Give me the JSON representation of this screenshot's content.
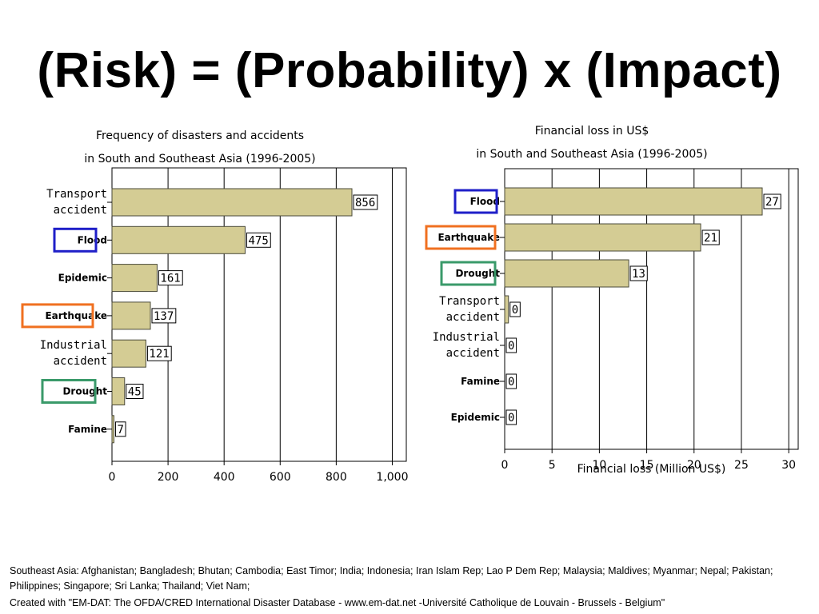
{
  "page": {
    "title": "(Risk) = (Probability) x (Impact)",
    "footnote_countries": "Southeast Asia: Afghanistan; Bangladesh; Bhutan; Cambodia; East Timor; India; Indonesia; Iran Islam Rep; Lao P Dem Rep; Malaysia; Maldives; Myanmar; Nepal; Pakistan; Philippines; Singapore; Sri Lanka; Thailand; Viet Nam;",
    "footnote_source": "Created with \"EM-DAT: The OFDA/CRED International Disaster Database - www.em-dat.net -Université Catholique de Louvain - Brussels - Belgium\""
  },
  "colors": {
    "bar_fill": "#d4cc94",
    "bar_stroke": "#4a4a3a",
    "highlight_flood": "#1f1fc8",
    "highlight_earthquake": "#f07020",
    "highlight_drought": "#3a9a6a"
  },
  "chart_data": [
    {
      "type": "bar",
      "orientation": "horizontal",
      "title_line1": "Frequency of disasters and accidents",
      "title_line2": "in South and Southeast Asia (1996-2005)",
      "xlabel": "",
      "categories": [
        "Transport accident",
        "Flood",
        "Epidemic",
        "Earthquake",
        "Industrial accident",
        "Drought",
        "Famine"
      ],
      "category_lines": [
        [
          "Transport",
          "accident"
        ],
        [
          "Flood"
        ],
        [
          "Epidemic"
        ],
        [
          "Earthquake"
        ],
        [
          "Industrial",
          "accident"
        ],
        [
          "Drought"
        ],
        [
          "Famine"
        ]
      ],
      "values": [
        856,
        475,
        161,
        137,
        121,
        45,
        7
      ],
      "value_labels": [
        "856",
        "475",
        "161",
        "137",
        "121",
        "45",
        "7"
      ],
      "xlim": [
        0,
        1050
      ],
      "ticks": [
        0,
        200,
        400,
        600,
        800,
        1000
      ],
      "tick_labels": [
        "0",
        "200",
        "400",
        "600",
        "800",
        "1,000"
      ],
      "grid": true,
      "highlights": {
        "Flood": "blue",
        "Earthquake": "orange",
        "Drought": "green"
      }
    },
    {
      "type": "bar",
      "orientation": "horizontal",
      "title_line1": "Financial loss in US$",
      "title_line2": "in South and Southeast Asia (1996-2005)",
      "xlabel": "Financial loss (Million US$)",
      "categories": [
        "Flood",
        "Earthquake",
        "Drought",
        "Transport accident",
        "Industrial accident",
        "Famine",
        "Epidemic"
      ],
      "category_lines": [
        [
          "Flood"
        ],
        [
          "Earthquake"
        ],
        [
          "Drought"
        ],
        [
          "Transport",
          "accident"
        ],
        [
          "Industrial",
          "accident"
        ],
        [
          "Famine"
        ],
        [
          "Epidemic"
        ]
      ],
      "values": [
        27.2,
        20.7,
        13.1,
        0.4,
        0,
        0,
        0
      ],
      "value_labels": [
        "27",
        "21",
        "13",
        "0",
        "0",
        "0",
        "0"
      ],
      "xlim": [
        0,
        31
      ],
      "ticks": [
        0,
        5,
        10,
        15,
        20,
        25,
        30
      ],
      "tick_labels": [
        "0",
        "5",
        "10",
        "15",
        "20",
        "25",
        "30"
      ],
      "grid": true,
      "highlights": {
        "Flood": "blue",
        "Earthquake": "orange",
        "Drought": "green"
      }
    }
  ]
}
